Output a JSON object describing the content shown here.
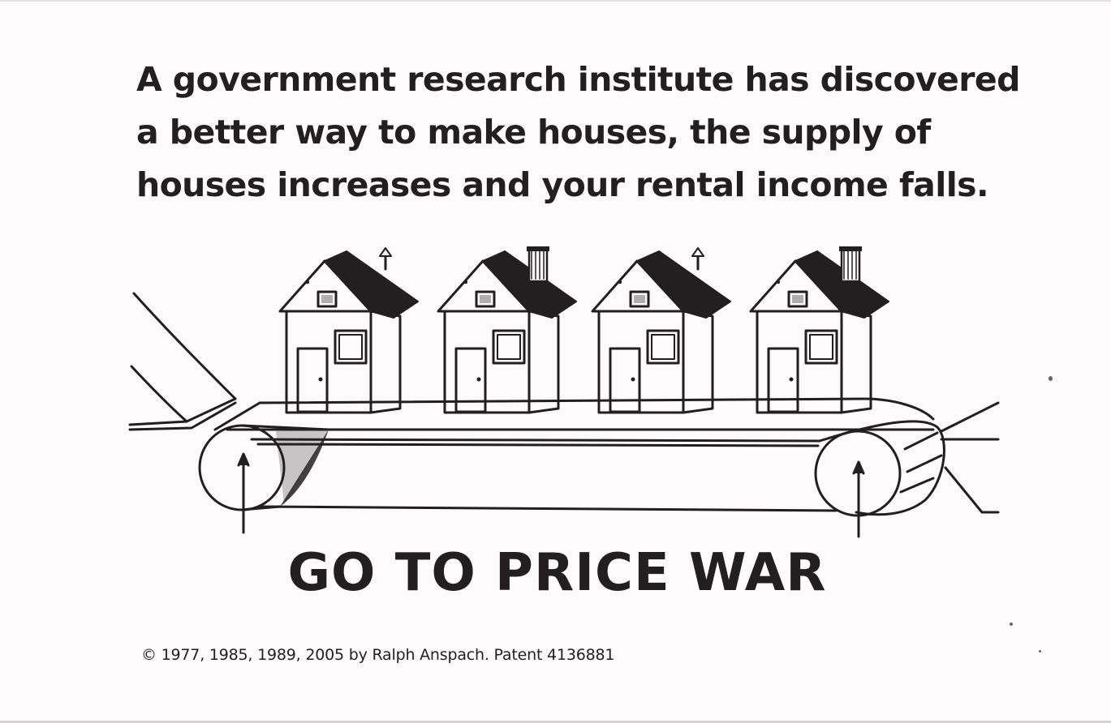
{
  "card": {
    "text_lines": [
      "A government research institute has discovered",
      "a better way to make houses, the supply of",
      "houses increases and your rental income falls."
    ],
    "heading": "GO TO PRICE WAR",
    "footer": "© 1977, 1985, 1989, 2005 by Ralph Anspach. Patent 4136881"
  },
  "illustration": {
    "house_count": 4,
    "roof_color": "#231f20",
    "line_color": "#231f20"
  }
}
